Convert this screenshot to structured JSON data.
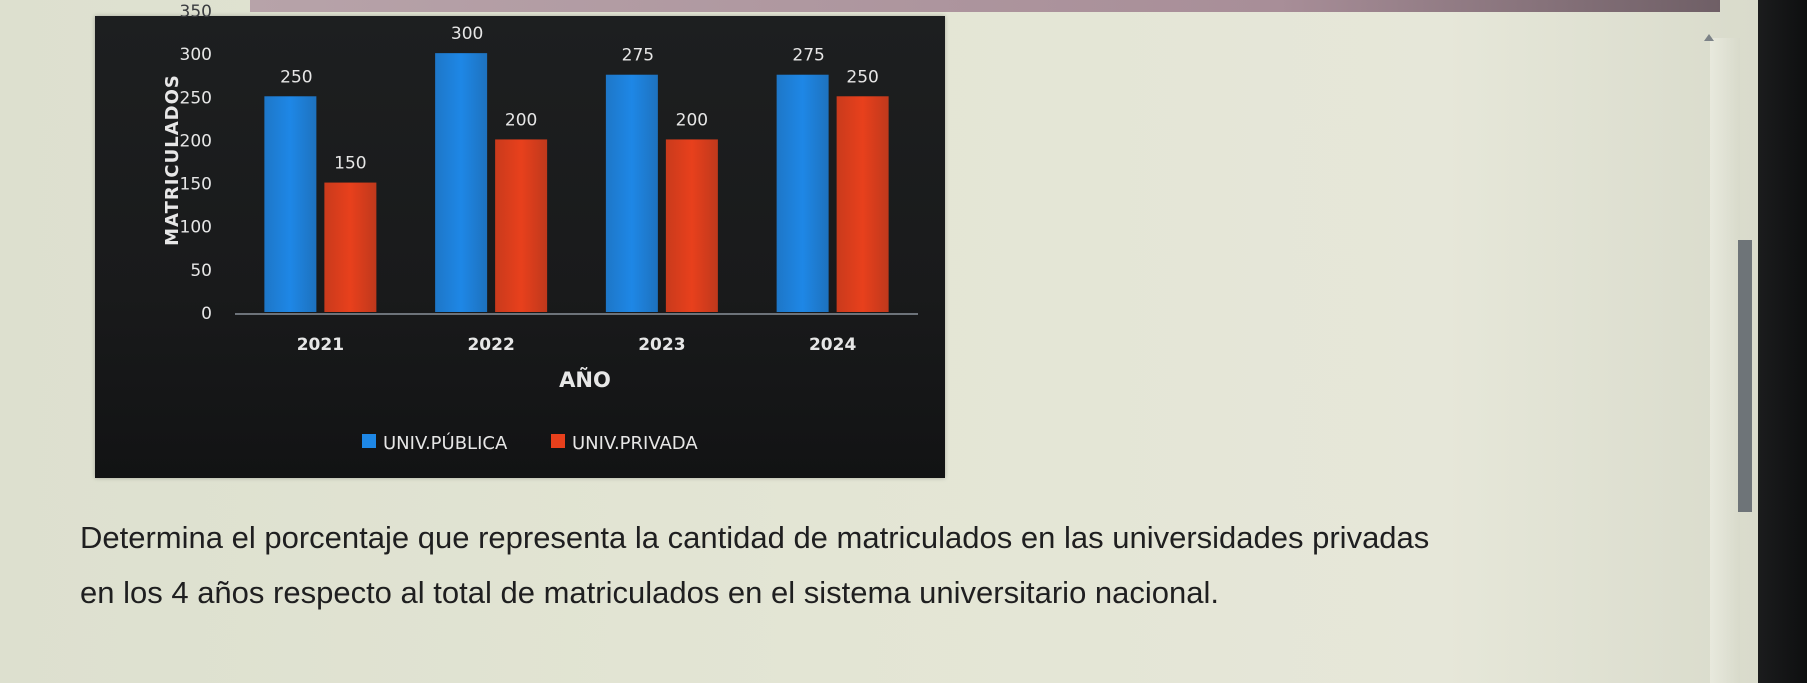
{
  "chart_data": {
    "type": "bar",
    "xlabel": "AÑO",
    "ylabel": "MATRICULADOS",
    "categories": [
      "2021",
      "2022",
      "2023",
      "2024"
    ],
    "ylim": [
      0,
      350
    ],
    "y_ticks": [
      "0",
      "50",
      "100",
      "150",
      "200",
      "250",
      "300",
      "350"
    ],
    "series": [
      {
        "name": "UNIV.PÚBLICA",
        "color": "#1e87e6",
        "values": [
          250,
          300,
          275,
          275
        ],
        "labels": [
          "250",
          "300",
          "275",
          "275"
        ]
      },
      {
        "name": "UNIV.PRIVADA",
        "color": "#e8401c",
        "values": [
          150,
          200,
          200,
          250
        ],
        "labels": [
          "150",
          "200",
          "200",
          "250"
        ]
      }
    ],
    "legend": "bottom",
    "grid": false
  },
  "question": {
    "line1": "Determina el porcentaje que representa la cantidad de matriculados en las universidades privadas",
    "line2": "en los 4 años respecto al total de matriculados en el sistema universitario nacional."
  }
}
